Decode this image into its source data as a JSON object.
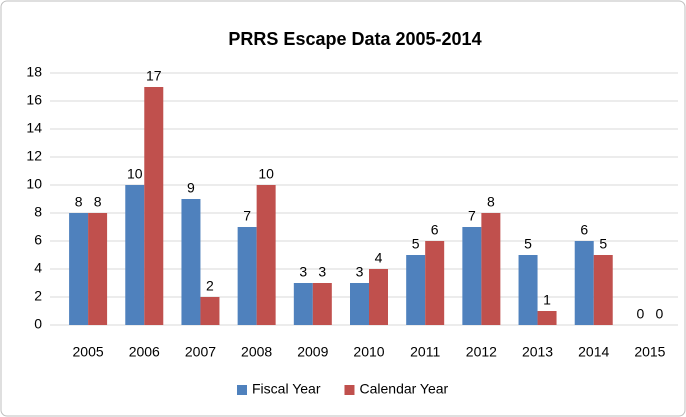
{
  "chart_data": {
    "type": "bar",
    "title": "PRRS Escape Data  2005-2014",
    "categories": [
      "2005",
      "2006",
      "2007",
      "2008",
      "2009",
      "2010",
      "2011",
      "2012",
      "2013",
      "2014",
      "2015"
    ],
    "series": [
      {
        "name": "Fiscal Year",
        "color": "#4f81bd",
        "values": [
          8,
          10,
          9,
          7,
          3,
          3,
          5,
          7,
          5,
          6,
          0
        ]
      },
      {
        "name": "Calendar Year",
        "color": "#c0504d",
        "values": [
          8,
          17,
          2,
          10,
          3,
          4,
          6,
          8,
          1,
          5,
          0
        ]
      }
    ],
    "ylim": [
      0,
      18
    ],
    "yticks": [
      0,
      2,
      4,
      6,
      8,
      10,
      12,
      14,
      16,
      18
    ],
    "grid": true,
    "legend": "bottom"
  }
}
